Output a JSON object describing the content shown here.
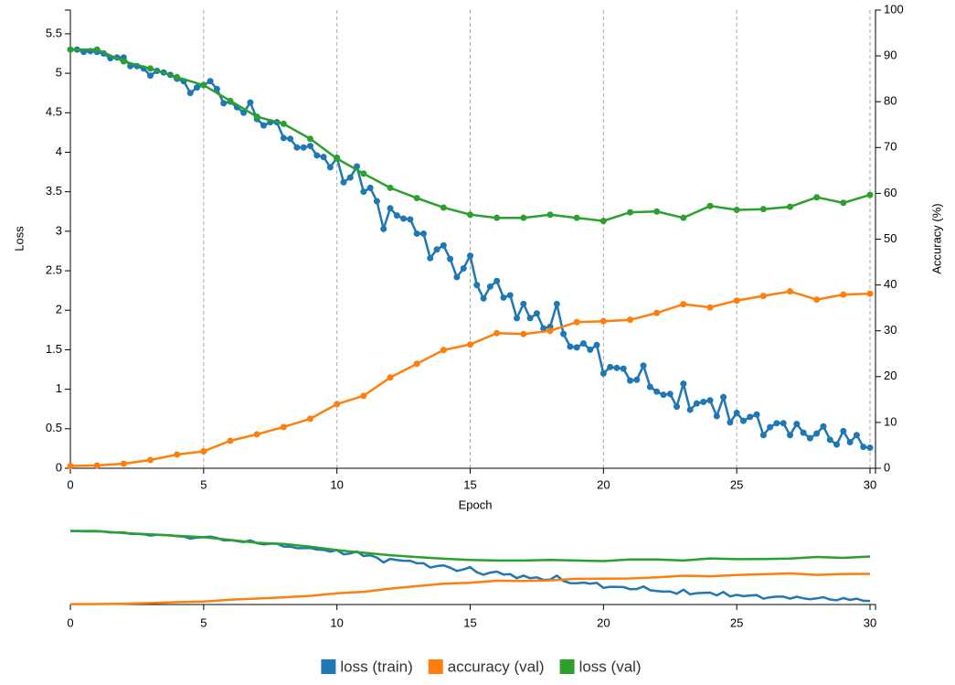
{
  "chart_data": {
    "type": "line",
    "x_label": "Epoch",
    "y_label": "Loss",
    "y2_label": "Accuracy (%)",
    "xlim": [
      0,
      30
    ],
    "xticks": [
      0,
      5,
      10,
      15,
      20,
      25,
      30
    ],
    "ylim": [
      0,
      5.8
    ],
    "yticks": [
      0,
      0.5,
      1,
      1.5,
      2,
      2.5,
      3,
      3.5,
      4,
      4.5,
      5,
      5.5
    ],
    "y2lim": [
      0,
      100
    ],
    "y2ticks": [
      0,
      10,
      20,
      30,
      40,
      50,
      60,
      70,
      80,
      90,
      100
    ],
    "grid": "x",
    "legend": "bottom",
    "series": [
      {
        "name": "loss (train)",
        "color": "#1f77b4",
        "x": [
          0,
          0.25,
          0.5,
          0.75,
          1,
          1.25,
          1.5,
          1.75,
          2,
          2.25,
          2.5,
          2.75,
          3,
          3.25,
          3.5,
          3.75,
          4,
          4.25,
          4.5,
          4.75,
          5,
          5.25,
          5.5,
          5.75,
          6,
          6.25,
          6.5,
          6.75,
          7,
          7.25,
          7.5,
          7.75,
          8,
          8.25,
          8.5,
          8.75,
          9,
          9.25,
          9.5,
          9.75,
          10,
          10.25,
          10.5,
          10.75,
          11,
          11.25,
          11.5,
          11.75,
          12,
          12.25,
          12.5,
          12.75,
          13,
          13.25,
          13.5,
          13.75,
          14,
          14.25,
          14.5,
          14.75,
          15,
          15.25,
          15.5,
          15.75,
          16,
          16.25,
          16.5,
          16.75,
          17,
          17.25,
          17.5,
          17.75,
          18,
          18.25,
          18.5,
          18.75,
          19,
          19.25,
          19.5,
          19.75,
          20,
          20.25,
          20.5,
          20.75,
          21,
          21.25,
          21.5,
          21.75,
          22,
          22.25,
          22.5,
          22.75,
          23,
          23.25,
          23.5,
          23.75,
          24,
          24.25,
          24.5,
          24.75,
          25,
          25.25,
          25.5,
          25.75,
          26,
          26.25,
          26.5,
          26.75,
          27,
          27.25,
          27.5,
          27.75,
          28,
          28.25,
          28.5,
          28.75,
          29,
          29.25,
          29.5,
          29.75,
          30
        ],
        "values": [
          5.3,
          5.3,
          5.27,
          5.28,
          5.27,
          5.25,
          5.19,
          5.2,
          5.2,
          5.09,
          5.09,
          5.06,
          4.97,
          5.03,
          5.01,
          4.98,
          4.93,
          4.9,
          4.75,
          4.82,
          4.85,
          4.9,
          4.8,
          4.62,
          4.64,
          4.57,
          4.5,
          4.63,
          4.42,
          4.34,
          4.38,
          4.38,
          4.18,
          4.17,
          4.06,
          4.06,
          4.08,
          3.96,
          3.94,
          3.81,
          3.93,
          3.62,
          3.68,
          3.82,
          3.5,
          3.55,
          3.38,
          3.03,
          3.29,
          3.2,
          3.16,
          3.15,
          2.97,
          2.97,
          2.66,
          2.77,
          2.82,
          2.65,
          2.42,
          2.53,
          2.69,
          2.32,
          2.15,
          2.3,
          2.37,
          2.16,
          2.19,
          1.9,
          2.08,
          1.9,
          1.96,
          1.77,
          1.79,
          2.08,
          1.7,
          1.54,
          1.53,
          1.58,
          1.5,
          1.56,
          1.2,
          1.28,
          1.27,
          1.26,
          1.11,
          1.12,
          1.3,
          1.03,
          0.97,
          0.93,
          0.94,
          0.78,
          1.07,
          0.74,
          0.82,
          0.84,
          0.86,
          0.66,
          0.9,
          0.58,
          0.7,
          0.6,
          0.65,
          0.68,
          0.42,
          0.52,
          0.57,
          0.57,
          0.42,
          0.56,
          0.45,
          0.38,
          0.44,
          0.53,
          0.36,
          0.3,
          0.47,
          0.33,
          0.42,
          0.27,
          0.26
        ]
      },
      {
        "name": "accuracy (val)",
        "color": "#ff7f0e",
        "axis": "y2",
        "x": [
          0,
          1,
          2,
          3,
          4,
          5,
          6,
          7,
          8,
          9,
          10,
          11,
          12,
          13,
          14,
          15,
          16,
          17,
          18,
          19,
          20,
          21,
          22,
          23,
          24,
          25,
          26,
          27,
          28,
          29,
          30
        ],
        "values": [
          0.5,
          0.6,
          1.0,
          1.8,
          3.0,
          3.7,
          6.0,
          7.4,
          9.0,
          10.8,
          14.0,
          15.8,
          19.8,
          22.8,
          25.8,
          27.0,
          29.5,
          29.3,
          30.0,
          31.9,
          32.1,
          32.4,
          33.9,
          35.8,
          35.1,
          36.6,
          37.6,
          38.6,
          36.8,
          37.9,
          38.1
        ]
      },
      {
        "name": "loss (val)",
        "color": "#2ca02c",
        "x": [
          0,
          1,
          2,
          3,
          4,
          5,
          6,
          7,
          8,
          9,
          10,
          11,
          12,
          13,
          14,
          15,
          16,
          17,
          18,
          19,
          20,
          21,
          22,
          23,
          24,
          25,
          26,
          27,
          28,
          29,
          30
        ],
        "values": [
          5.3,
          5.3,
          5.15,
          5.06,
          4.95,
          4.85,
          4.65,
          4.45,
          4.36,
          4.17,
          3.92,
          3.73,
          3.55,
          3.42,
          3.3,
          3.21,
          3.17,
          3.17,
          3.21,
          3.17,
          3.13,
          3.24,
          3.25,
          3.17,
          3.32,
          3.27,
          3.28,
          3.31,
          3.43,
          3.36,
          3.46
        ]
      }
    ]
  }
}
